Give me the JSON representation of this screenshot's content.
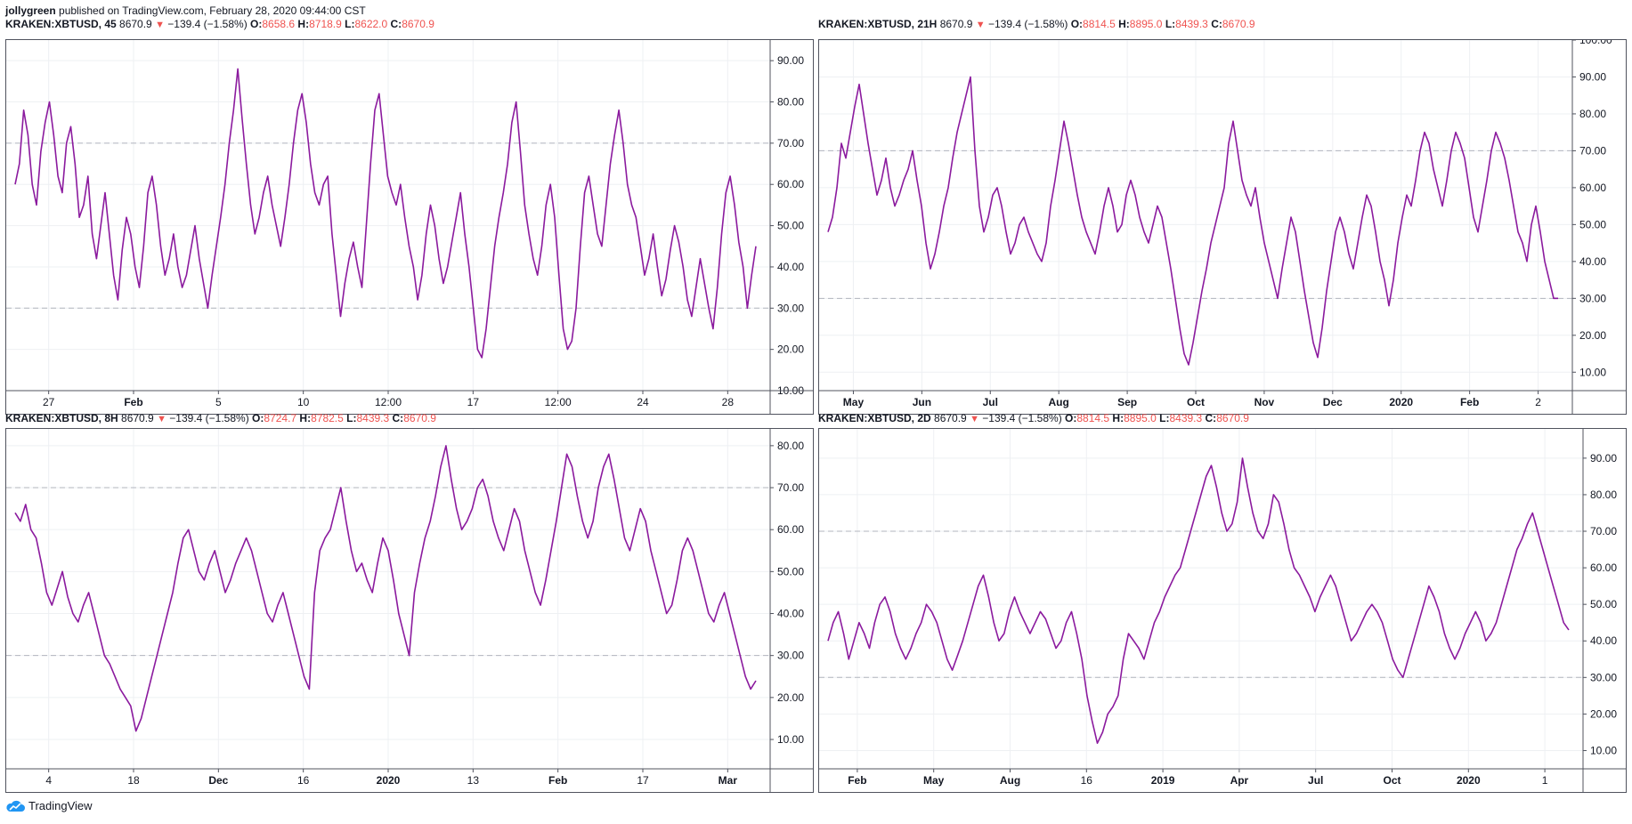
{
  "publish": {
    "author": "jollygreen",
    "text": "published on TradingView.com, February 28, 2020 09:44:00 CST"
  },
  "brand": {
    "label": "TradingView",
    "icon": "tradingview-cloud-icon"
  },
  "colors": {
    "line": "#8b1a9e",
    "red": "#ef5350",
    "grid": "#eef0f3",
    "dash": "#b2b5be"
  },
  "panels": [
    {
      "legend": {
        "symbol": "KRAKEN:XBTUSD, 45",
        "price": "8670.9",
        "change": "−139.4 (−1.58%)",
        "o_label": "O:",
        "o": "8658.6",
        "h_label": "H:",
        "h": "8718.9",
        "l_label": "L:",
        "l": "8622.0",
        "c_label": "C:",
        "c": "8670.9"
      }
    },
    {
      "legend": {
        "symbol": "KRAKEN:XBTUSD, 21H",
        "price": "8670.9",
        "change": "−139.4 (−1.58%)",
        "o_label": "O:",
        "o": "8814.5",
        "h_label": "H:",
        "h": "8895.0",
        "l_label": "L:",
        "l": "8439.3",
        "c_label": "C:",
        "c": "8670.9"
      }
    },
    {
      "legend": {
        "symbol": "KRAKEN:XBTUSD, 8H",
        "price": "8670.9",
        "change": "−139.4 (−1.58%)",
        "o_label": "O:",
        "o": "8724.7",
        "h_label": "H:",
        "h": "8782.5",
        "l_label": "L:",
        "l": "8439.3",
        "c_label": "C:",
        "c": "8670.9"
      }
    },
    {
      "legend": {
        "symbol": "KRAKEN:XBTUSD, 2D",
        "price": "8670.9",
        "change": "−139.4 (−1.58%)",
        "o_label": "O:",
        "o": "8814.5",
        "h_label": "H:",
        "h": "8895.0",
        "l_label": "L:",
        "l": "8439.3",
        "c_label": "C:",
        "c": "8670.9"
      }
    }
  ],
  "chart_data": [
    {
      "type": "line",
      "xticks": [
        "27",
        "Feb",
        "5",
        "10",
        "12:00",
        "17",
        "12:00",
        "24",
        "28"
      ],
      "yticks": [
        "10.00",
        "20.00",
        "30.00",
        "40.00",
        "50.00",
        "60.00",
        "70.00",
        "80.00",
        "90.00"
      ],
      "ylim": [
        10,
        95
      ],
      "bands": [
        70,
        30
      ],
      "series": [
        {
          "values": [
            60,
            65,
            78,
            72,
            60,
            55,
            68,
            75,
            80,
            72,
            62,
            58,
            70,
            74,
            65,
            52,
            55,
            62,
            48,
            42,
            50,
            58,
            48,
            38,
            32,
            44,
            52,
            48,
            40,
            35,
            45,
            58,
            62,
            55,
            45,
            38,
            42,
            48,
            40,
            35,
            38,
            44,
            50,
            42,
            36,
            30,
            38,
            45,
            52,
            60,
            70,
            78,
            88,
            76,
            65,
            55,
            48,
            52,
            58,
            62,
            55,
            50,
            45,
            52,
            60,
            70,
            78,
            82,
            75,
            65,
            58,
            55,
            60,
            62,
            48,
            38,
            28,
            36,
            42,
            46,
            40,
            35,
            50,
            65,
            78,
            82,
            72,
            62,
            58,
            55,
            60,
            52,
            45,
            40,
            32,
            38,
            48,
            55,
            50,
            42,
            36,
            40,
            46,
            52,
            58,
            48,
            40,
            30,
            20,
            18,
            25,
            35,
            45,
            52,
            58,
            65,
            75,
            80,
            68,
            55,
            48,
            42,
            38,
            45,
            55,
            60,
            52,
            38,
            25,
            20,
            22,
            30,
            45,
            58,
            62,
            55,
            48,
            45,
            55,
            65,
            72,
            78,
            70,
            60,
            55,
            52,
            45,
            38,
            42,
            48,
            40,
            33,
            37,
            44,
            50,
            46,
            40,
            32,
            28,
            35,
            42,
            36,
            30,
            25,
            35,
            48,
            58,
            62,
            55,
            46,
            40,
            30,
            38,
            45
          ]
        }
      ]
    },
    {
      "type": "line",
      "xticks": [
        "May",
        "Jun",
        "Jul",
        "Aug",
        "Sep",
        "Oct",
        "Nov",
        "Dec",
        "2020",
        "Feb",
        "2"
      ],
      "yticks": [
        "10.00",
        "20.00",
        "30.00",
        "40.00",
        "50.00",
        "60.00",
        "70.00",
        "80.00",
        "90.00",
        "100.00"
      ],
      "ylim": [
        5,
        100
      ],
      "bands": [
        70,
        30
      ],
      "series": [
        {
          "values": [
            48,
            52,
            60,
            72,
            68,
            75,
            82,
            88,
            80,
            72,
            65,
            58,
            62,
            68,
            60,
            55,
            58,
            62,
            65,
            70,
            62,
            55,
            45,
            38,
            42,
            48,
            55,
            60,
            68,
            75,
            80,
            85,
            90,
            70,
            55,
            48,
            52,
            58,
            60,
            55,
            48,
            42,
            45,
            50,
            52,
            48,
            45,
            42,
            40,
            45,
            55,
            62,
            70,
            78,
            72,
            65,
            58,
            52,
            48,
            45,
            42,
            48,
            55,
            60,
            55,
            48,
            50,
            58,
            62,
            58,
            52,
            48,
            45,
            50,
            55,
            52,
            45,
            38,
            30,
            22,
            15,
            12,
            18,
            25,
            32,
            38,
            45,
            50,
            55,
            60,
            72,
            78,
            70,
            62,
            58,
            55,
            60,
            52,
            45,
            40,
            35,
            30,
            38,
            45,
            52,
            48,
            40,
            32,
            25,
            18,
            14,
            22,
            32,
            40,
            48,
            52,
            48,
            42,
            38,
            45,
            52,
            58,
            55,
            48,
            40,
            35,
            28,
            35,
            45,
            52,
            58,
            55,
            62,
            70,
            75,
            72,
            65,
            60,
            55,
            62,
            70,
            75,
            72,
            68,
            60,
            52,
            48,
            55,
            62,
            70,
            75,
            72,
            68,
            62,
            55,
            48,
            45,
            40,
            50,
            55,
            48,
            40,
            35,
            30,
            30
          ]
        }
      ]
    },
    {
      "type": "line",
      "xticks": [
        "4",
        "18",
        "Dec",
        "16",
        "2020",
        "13",
        "Feb",
        "17",
        "Mar"
      ],
      "yticks": [
        "10.00",
        "20.00",
        "30.00",
        "40.00",
        "50.00",
        "60.00",
        "70.00",
        "80.00"
      ],
      "ylim": [
        3,
        84
      ],
      "bands": [
        70,
        30
      ],
      "series": [
        {
          "values": [
            64,
            62,
            66,
            60,
            58,
            52,
            45,
            42,
            46,
            50,
            44,
            40,
            38,
            42,
            45,
            40,
            35,
            30,
            28,
            25,
            22,
            20,
            18,
            12,
            15,
            20,
            25,
            30,
            35,
            40,
            45,
            52,
            58,
            60,
            55,
            50,
            48,
            52,
            55,
            50,
            45,
            48,
            52,
            55,
            58,
            55,
            50,
            45,
            40,
            38,
            42,
            45,
            40,
            35,
            30,
            25,
            22,
            45,
            55,
            58,
            60,
            65,
            70,
            62,
            55,
            50,
            52,
            48,
            45,
            52,
            58,
            55,
            48,
            40,
            35,
            30,
            45,
            52,
            58,
            62,
            68,
            75,
            80,
            72,
            65,
            60,
            62,
            65,
            70,
            72,
            68,
            62,
            58,
            55,
            60,
            65,
            62,
            55,
            50,
            45,
            42,
            48,
            55,
            62,
            70,
            78,
            75,
            68,
            62,
            58,
            62,
            70,
            75,
            78,
            72,
            65,
            58,
            55,
            60,
            65,
            62,
            55,
            50,
            45,
            40,
            42,
            48,
            55,
            58,
            55,
            50,
            45,
            40,
            38,
            42,
            45,
            40,
            35,
            30,
            25,
            22,
            24
          ]
        }
      ]
    },
    {
      "type": "line",
      "xticks": [
        "Feb",
        "May",
        "Aug",
        "16",
        "2019",
        "Apr",
        "Jul",
        "Oct",
        "2020",
        "1"
      ],
      "yticks": [
        "10.00",
        "20.00",
        "30.00",
        "40.00",
        "50.00",
        "60.00",
        "70.00",
        "80.00",
        "90.00"
      ],
      "ylim": [
        5,
        98
      ],
      "bands": [
        70,
        30
      ],
      "series": [
        {
          "values": [
            40,
            45,
            48,
            42,
            35,
            40,
            45,
            42,
            38,
            45,
            50,
            52,
            48,
            42,
            38,
            35,
            38,
            42,
            45,
            50,
            48,
            45,
            40,
            35,
            32,
            36,
            40,
            45,
            50,
            55,
            58,
            52,
            45,
            40,
            42,
            48,
            52,
            48,
            45,
            42,
            45,
            48,
            46,
            42,
            38,
            40,
            45,
            48,
            42,
            35,
            25,
            18,
            12,
            15,
            20,
            22,
            25,
            35,
            42,
            40,
            38,
            35,
            40,
            45,
            48,
            52,
            55,
            58,
            60,
            65,
            70,
            75,
            80,
            85,
            88,
            82,
            75,
            70,
            72,
            78,
            90,
            82,
            75,
            70,
            68,
            72,
            80,
            78,
            72,
            65,
            60,
            58,
            55,
            52,
            48,
            52,
            55,
            58,
            55,
            50,
            45,
            40,
            42,
            45,
            48,
            50,
            48,
            45,
            40,
            35,
            32,
            30,
            35,
            40,
            45,
            50,
            55,
            52,
            48,
            42,
            38,
            35,
            38,
            42,
            45,
            48,
            45,
            40,
            42,
            45,
            50,
            55,
            60,
            65,
            68,
            72,
            75,
            70,
            65,
            60,
            55,
            50,
            45,
            43
          ]
        }
      ]
    }
  ]
}
